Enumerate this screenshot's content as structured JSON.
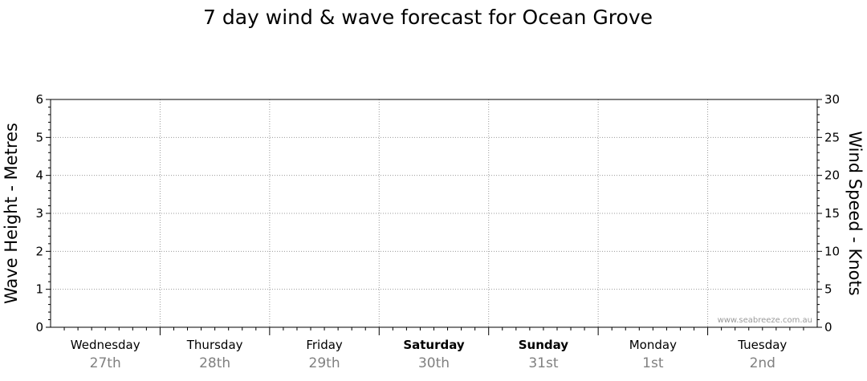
{
  "chart_data": {
    "type": "line",
    "title": "7 day wind & wave forecast for Ocean Grove",
    "ylabel_left": "Wave Height - Metres",
    "ylabel_right": "Wind Speed - Knots",
    "ylim_left": [
      0,
      6
    ],
    "ylim_right": [
      0,
      30
    ],
    "yticks_left": [
      0,
      1,
      2,
      3,
      4,
      5,
      6
    ],
    "yticks_right": [
      0,
      5,
      10,
      15,
      20,
      25,
      30
    ],
    "grid": true,
    "days": [
      {
        "day": "Wednesday",
        "date": "27th",
        "bold": false
      },
      {
        "day": "Thursday",
        "date": "28th",
        "bold": false
      },
      {
        "day": "Friday",
        "date": "29th",
        "bold": false
      },
      {
        "day": "Saturday",
        "date": "30th",
        "bold": true
      },
      {
        "day": "Sunday",
        "date": "31st",
        "bold": true
      },
      {
        "day": "Monday",
        "date": "1st",
        "bold": false
      },
      {
        "day": "Tuesday",
        "date": "2nd",
        "bold": false
      }
    ],
    "series": []
  },
  "watermark": "www.seabreeze.com.au"
}
